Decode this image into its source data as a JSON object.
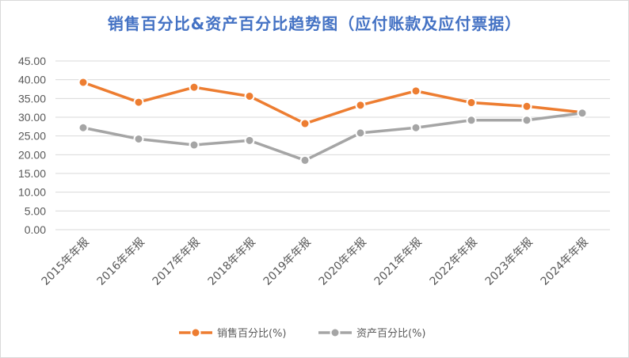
{
  "chart_data": {
    "type": "line",
    "title": "销售百分比&资产百分比趋势图（应付账款及应付票据）",
    "categories": [
      "2015年年报",
      "2016年年报",
      "2017年年报",
      "2018年年报",
      "2019年年报",
      "2020年年报",
      "2021年年报",
      "2022年年报",
      "2023年年报",
      "2024年年报"
    ],
    "series": [
      {
        "name": "销售百分比(%)",
        "color": "#ed7d31",
        "values": [
          39.3,
          34.0,
          38.0,
          35.6,
          28.3,
          33.2,
          37.0,
          33.9,
          32.9,
          31.3
        ]
      },
      {
        "name": "资产百分比(%)",
        "color": "#a5a5a5",
        "values": [
          27.2,
          24.2,
          22.6,
          23.8,
          18.5,
          25.8,
          27.2,
          29.2,
          29.2,
          31.1
        ]
      }
    ],
    "y_ticks": [
      "0.00",
      "5.00",
      "10.00",
      "15.00",
      "20.00",
      "25.00",
      "30.00",
      "35.00",
      "40.00",
      "45.00"
    ],
    "ylim": [
      0,
      45
    ],
    "grid": true,
    "legend_position": "bottom"
  }
}
